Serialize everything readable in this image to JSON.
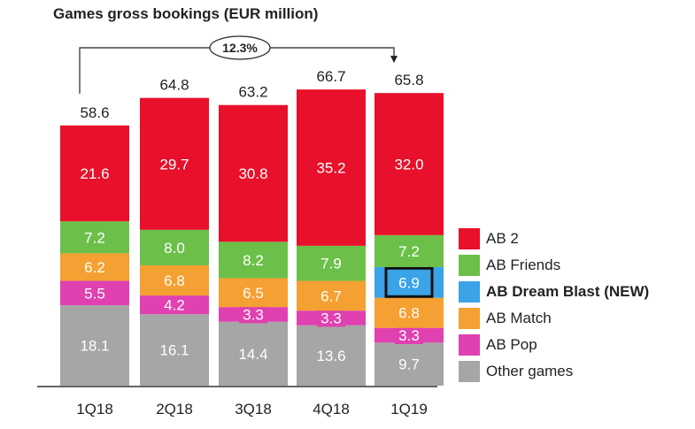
{
  "chart_data": {
    "type": "bar",
    "stacked": true,
    "title": "Games gross bookings (EUR million)",
    "categories": [
      "1Q18",
      "2Q18",
      "3Q18",
      "4Q18",
      "1Q19"
    ],
    "totals": [
      "58.6",
      "64.8",
      "63.2",
      "66.7",
      "65.8"
    ],
    "growth_annotation": "12.3%",
    "series": [
      {
        "name": "Other games",
        "color": "#a6a6a6",
        "values": [
          18.1,
          16.1,
          14.4,
          13.6,
          9.7
        ],
        "labels": [
          "18.1",
          "16.1",
          "14.4",
          "13.6",
          "9.7"
        ]
      },
      {
        "name": "AB Pop",
        "color": "#e040b0",
        "values": [
          5.5,
          4.2,
          3.3,
          3.3,
          3.3
        ],
        "labels": [
          "5.5",
          "4.2",
          "3.3",
          "3.3",
          "3.3"
        ]
      },
      {
        "name": "AB Match",
        "color": "#f5a032",
        "values": [
          6.2,
          6.8,
          6.5,
          6.7,
          6.8
        ],
        "labels": [
          "6.2",
          "6.8",
          "6.5",
          "6.7",
          "6.8"
        ]
      },
      {
        "name": "AB Dream Blast (NEW)",
        "color": "#3ba3e8",
        "values": [
          0,
          0,
          0,
          0,
          6.9
        ],
        "labels": [
          "",
          "",
          "",
          "",
          "6.9"
        ],
        "bold": true
      },
      {
        "name": "AB Friends",
        "color": "#6cc04a",
        "values": [
          7.2,
          8.0,
          8.2,
          7.9,
          7.2
        ],
        "labels": [
          "7.2",
          "8.0",
          "8.2",
          "7.9",
          "7.2"
        ]
      },
      {
        "name": "AB 2",
        "color": "#e8102a",
        "values": [
          21.6,
          29.7,
          30.8,
          35.2,
          32.0
        ],
        "labels": [
          "21.6",
          "29.7",
          "30.8",
          "35.2",
          "32.0"
        ]
      }
    ],
    "legend_order": [
      "AB 2",
      "AB Friends",
      "AB Dream Blast (NEW)",
      "AB Match",
      "AB Pop",
      "Other games"
    ],
    "legend_position": "right",
    "grid": false,
    "ylim": [
      0,
      70
    ]
  }
}
